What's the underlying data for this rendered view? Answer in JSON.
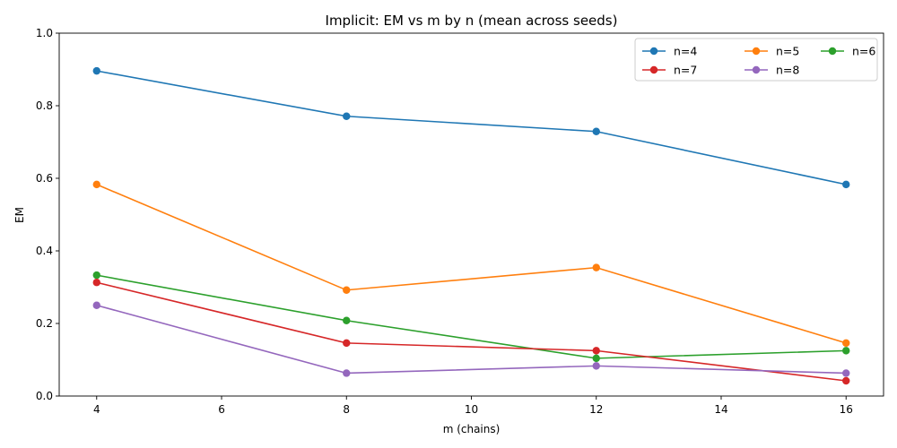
{
  "chart_data": {
    "type": "line",
    "title": "Implicit: EM vs m by n (mean across seeds)",
    "xlabel": "m (chains)",
    "ylabel": "EM",
    "x": [
      4,
      8,
      12,
      16
    ],
    "xlim": [
      3.4,
      16.6
    ],
    "ylim": [
      0.0,
      1.0
    ],
    "xticks": [
      4,
      6,
      8,
      10,
      12,
      14,
      16
    ],
    "yticks": [
      0.0,
      0.2,
      0.4,
      0.6,
      0.8,
      1.0
    ],
    "xtick_labels": [
      "4",
      "6",
      "8",
      "10",
      "12",
      "14",
      "16"
    ],
    "ytick_labels": [
      "0.0",
      "0.2",
      "0.4",
      "0.6",
      "0.8",
      "1.0"
    ],
    "grid": false,
    "legend_position": "top-right",
    "legend_columns": 3,
    "series": [
      {
        "name": "n=4",
        "color": "#1f77b4",
        "values": [
          0.896,
          0.771,
          0.729,
          0.583
        ]
      },
      {
        "name": "n=5",
        "color": "#ff7f0e",
        "values": [
          0.583,
          0.292,
          0.354,
          0.146
        ]
      },
      {
        "name": "n=6",
        "color": "#2ca02c",
        "values": [
          0.333,
          0.208,
          0.104,
          0.125
        ]
      },
      {
        "name": "n=7",
        "color": "#d62728",
        "values": [
          0.313,
          0.146,
          0.125,
          0.042
        ]
      },
      {
        "name": "n=8",
        "color": "#9467bd",
        "values": [
          0.25,
          0.063,
          0.083,
          0.063
        ]
      }
    ]
  }
}
